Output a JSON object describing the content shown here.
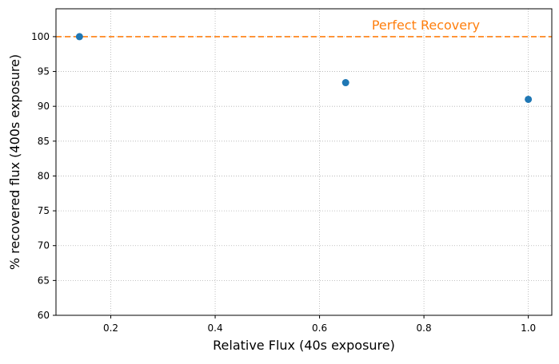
{
  "chart_data": {
    "type": "scatter",
    "xlabel": "Relative Flux (40s exposure)",
    "ylabel": "% recovered flux (400s exposure)",
    "xlim": [
      0.095,
      1.045
    ],
    "ylim": [
      60,
      104
    ],
    "grid": true,
    "x_ticks": [
      0.2,
      0.4,
      0.6,
      0.8,
      1.0
    ],
    "x_tick_labels": [
      "0.2",
      "0.4",
      "0.6",
      "0.8",
      "1.0"
    ],
    "y_ticks": [
      60,
      65,
      70,
      75,
      80,
      85,
      90,
      95,
      100
    ],
    "y_tick_labels": [
      "60",
      "65",
      "70",
      "75",
      "80",
      "85",
      "90",
      "95",
      "100"
    ],
    "series": [
      {
        "color": "#1f77b4",
        "x": [
          0.14,
          0.65,
          1.0
        ],
        "y": [
          100.0,
          93.4,
          91.0
        ]
      }
    ],
    "reference_line": {
      "y": 100,
      "label": "Perfect Recovery",
      "label_x": 0.7,
      "color": "#ff7f0e",
      "style": "dashed"
    }
  }
}
